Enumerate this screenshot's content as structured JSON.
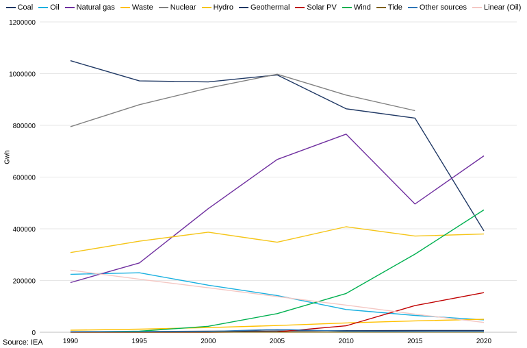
{
  "chart_data": {
    "type": "line",
    "title": "",
    "xlabel": "",
    "ylabel": "Gwh",
    "source": "Source: IEA",
    "x": [
      "1990",
      "1995",
      "2000",
      "2005",
      "2010",
      "2015",
      "2020"
    ],
    "yticks": [
      "0",
      "200000",
      "400000",
      "600000",
      "800000",
      "1000000",
      "1200000"
    ],
    "ylim": [
      0,
      1200000
    ],
    "grid": true,
    "legend_position": "top",
    "series": [
      {
        "name": "Coal",
        "color": "#1f3864",
        "values": [
          1050000,
          972000,
          968000,
          995000,
          864000,
          828000,
          392000
        ]
      },
      {
        "name": "Oil",
        "color": "#1ab0e0",
        "values": [
          224000,
          230000,
          182000,
          142000,
          88000,
          65000,
          48000
        ]
      },
      {
        "name": "Natural gas",
        "color": "#7030a0",
        "values": [
          192000,
          268000,
          478000,
          668000,
          766000,
          496000,
          682000
        ]
      },
      {
        "name": "Waste",
        "color": "#ffc000",
        "values": [
          8000,
          12000,
          18000,
          26000,
          36000,
          44000,
          50000
        ]
      },
      {
        "name": "Nuclear",
        "color": "#808080",
        "values": [
          795000,
          880000,
          944000,
          998000,
          917000,
          857000,
          null
        ]
      },
      {
        "name": "Hydro",
        "color": "#f5c518",
        "values": [
          308000,
          352000,
          387000,
          348000,
          408000,
          372000,
          380000
        ]
      },
      {
        "name": "Geothermal",
        "color": "#203864",
        "values": [
          2000,
          3000,
          4000,
          5000,
          6000,
          6500,
          7000
        ]
      },
      {
        "name": "Solar PV",
        "color": "#c00000",
        "values": [
          0,
          0,
          100,
          1500,
          25000,
          103000,
          153000
        ]
      },
      {
        "name": "Wind",
        "color": "#00b050",
        "values": [
          800,
          4000,
          23000,
          72000,
          150000,
          302000,
          473000
        ]
      },
      {
        "name": "Tide",
        "color": "#7f6000",
        "values": [
          600,
          600,
          600,
          600,
          600,
          600,
          600
        ]
      },
      {
        "name": "Other sources",
        "color": "#2e75b6",
        "values": [
          1500,
          2000,
          3000,
          11000,
          4000,
          3000,
          3000
        ]
      },
      {
        "name": "Linear (Oil)",
        "color": "#f4c7c3",
        "dashed": false,
        "values": [
          240000,
          205000,
          172000,
          138000,
          105000,
          70000,
          38000
        ]
      }
    ]
  }
}
